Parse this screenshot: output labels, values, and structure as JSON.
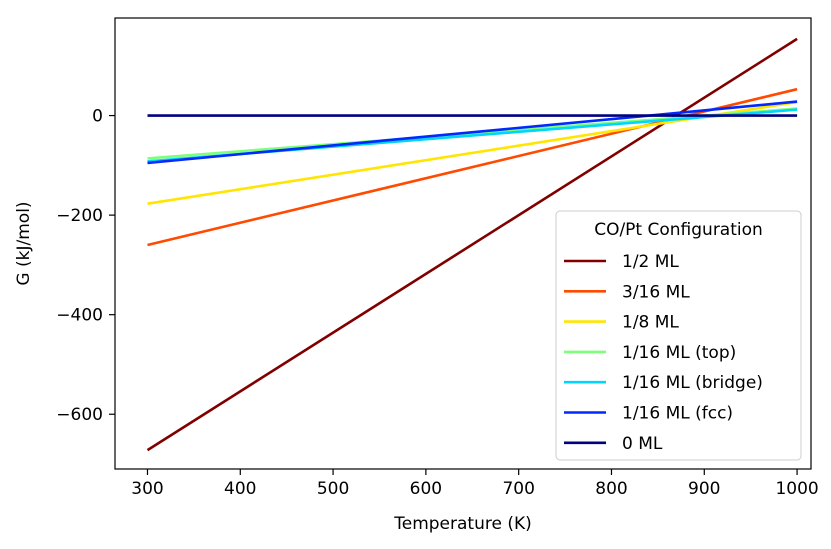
{
  "chart_data": {
    "type": "line",
    "title": "",
    "xlabel": "Temperature (K)",
    "ylabel": "G (kJ/mol)",
    "xlim": [
      265,
      1015
    ],
    "ylim": [
      -710,
      196
    ],
    "xticks": [
      300,
      400,
      500,
      600,
      700,
      800,
      900,
      1000
    ],
    "yticks": [
      -600,
      -400,
      -200,
      0
    ],
    "ytick_labels": [
      "−600",
      "−400",
      "−200",
      "0"
    ],
    "grid": false,
    "legend": {
      "title": "CO/Pt Configuration",
      "position": "lower-right"
    },
    "series": [
      {
        "name": "1/2 ML",
        "color": "#800000",
        "x": [
          300,
          1000
        ],
        "y": [
          -672,
          154
        ]
      },
      {
        "name": "3/16 ML",
        "color": "#ff4a00",
        "x": [
          300,
          1000
        ],
        "y": [
          -260,
          53
        ]
      },
      {
        "name": "1/8 ML",
        "color": "#ffe500",
        "x": [
          300,
          1000
        ],
        "y": [
          -177,
          27
        ]
      },
      {
        "name": "1/16 ML (top)",
        "color": "#7dff7a",
        "x": [
          300,
          1000
        ],
        "y": [
          -86,
          14
        ]
      },
      {
        "name": "1/16 ML (bridge)",
        "color": "#00d4ff",
        "x": [
          300,
          1000
        ],
        "y": [
          -92,
          12
        ]
      },
      {
        "name": "1/16 ML (fcc)",
        "color": "#0028ff",
        "x": [
          300,
          1000
        ],
        "y": [
          -95,
          28
        ]
      },
      {
        "name": "0 ML",
        "color": "#000080",
        "x": [
          300,
          1000
        ],
        "y": [
          0,
          0
        ]
      }
    ]
  }
}
